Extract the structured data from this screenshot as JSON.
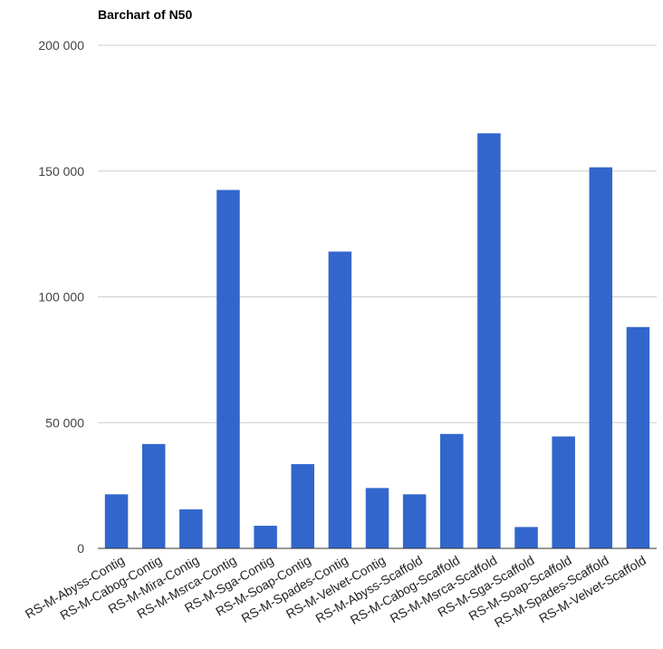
{
  "chart_data": {
    "type": "bar",
    "title": "Barchart of N50",
    "xlabel": "",
    "ylabel": "",
    "ylim": [
      0,
      200000
    ],
    "yticks": [
      0,
      50000,
      100000,
      150000,
      200000
    ],
    "ytick_labels": [
      "0",
      "50 000",
      "100 000",
      "150 000",
      "200 000"
    ],
    "grid": true,
    "bar_color": "#3366cc",
    "categories": [
      "RS-M-Abyss-Contig",
      "RS-M-Cabog-Contig",
      "RS-M-Mira-Contig",
      "RS-M-Msrca-Contig",
      "RS-M-Sga-Contig",
      "RS-M-Soap-Contig",
      "RS-M-Spades-Contig",
      "RS-M-Velvet-Contig",
      "RS-M-Abyss-Scaffold",
      "RS-M-Cabog-Scaffold",
      "RS-M-Msrca-Scaffold",
      "RS-M-Sga-Scaffold",
      "RS-M-Soap-Scaffold",
      "RS-M-Spades-Scaffold",
      "RS-M-Velvet-Scaffold"
    ],
    "values": [
      21500,
      41500,
      15500,
      142500,
      9000,
      33500,
      118000,
      24000,
      21500,
      45500,
      165000,
      8500,
      44500,
      151500,
      88000
    ]
  }
}
